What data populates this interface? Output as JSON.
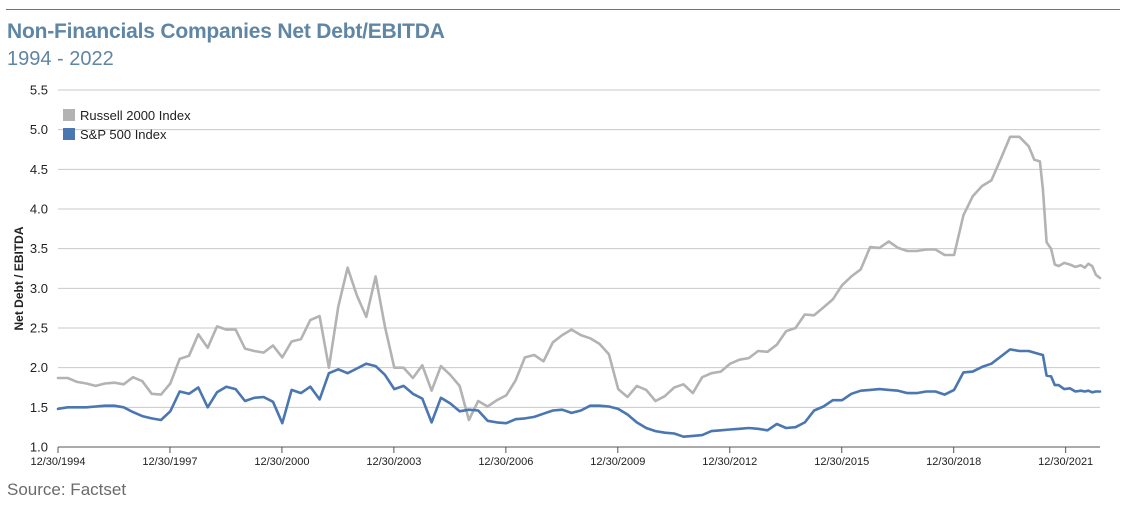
{
  "header": {
    "title": "Non-Financials Companies Net Debt/EBITDA",
    "subtitle": "1994 - 2022"
  },
  "footer": {
    "source": "Source: Factset"
  },
  "chart_data": {
    "type": "line",
    "ylabel": "Net Debt / EBITDA",
    "ylim": [
      1.0,
      5.5
    ],
    "yticks": [
      "1.0",
      "1.5",
      "2.0",
      "2.5",
      "3.0",
      "3.5",
      "4.0",
      "4.5",
      "5.0",
      "5.5"
    ],
    "xlim": [
      1994.99,
      2022.91
    ],
    "xticks": [
      {
        "label": "12/30/1994",
        "value": 1994.99
      },
      {
        "label": "12/30/1997",
        "value": 1997.99
      },
      {
        "label": "12/30/2000",
        "value": 2000.99
      },
      {
        "label": "12/30/2003",
        "value": 2003.99
      },
      {
        "label": "12/30/2006",
        "value": 2006.99
      },
      {
        "label": "12/30/2009",
        "value": 2009.99
      },
      {
        "label": "12/30/2012",
        "value": 2012.99
      },
      {
        "label": "12/30/2015",
        "value": 2015.99
      },
      {
        "label": "12/30/2018",
        "value": 2018.99
      },
      {
        "label": "12/30/2021",
        "value": 2021.99
      }
    ],
    "grid": true,
    "legend_position": "top-left",
    "series": [
      {
        "name": "Russell 2000 Index",
        "color": "#b3b3b3",
        "points": [
          [
            1994.99,
            1.87
          ],
          [
            1995.25,
            1.87
          ],
          [
            1995.5,
            1.82
          ],
          [
            1995.75,
            1.8
          ],
          [
            1996.0,
            1.77
          ],
          [
            1996.25,
            1.8
          ],
          [
            1996.5,
            1.81
          ],
          [
            1996.75,
            1.79
          ],
          [
            1997.0,
            1.88
          ],
          [
            1997.25,
            1.83
          ],
          [
            1997.5,
            1.67
          ],
          [
            1997.75,
            1.66
          ],
          [
            1998.0,
            1.8
          ],
          [
            1998.25,
            2.11
          ],
          [
            1998.5,
            2.15
          ],
          [
            1998.75,
            2.42
          ],
          [
            1999.0,
            2.25
          ],
          [
            1999.25,
            2.52
          ],
          [
            1999.5,
            2.48
          ],
          [
            1999.75,
            2.48
          ],
          [
            2000.0,
            2.24
          ],
          [
            2000.25,
            2.21
          ],
          [
            2000.5,
            2.19
          ],
          [
            2000.75,
            2.28
          ],
          [
            2001.0,
            2.13
          ],
          [
            2001.25,
            2.33
          ],
          [
            2001.5,
            2.36
          ],
          [
            2001.75,
            2.6
          ],
          [
            2002.0,
            2.65
          ],
          [
            2002.25,
            2.0
          ],
          [
            2002.5,
            2.77
          ],
          [
            2002.75,
            3.26
          ],
          [
            2003.0,
            2.91
          ],
          [
            2003.25,
            2.64
          ],
          [
            2003.5,
            3.15
          ],
          [
            2003.75,
            2.52
          ],
          [
            2004.0,
            2.0
          ],
          [
            2004.25,
            2.0
          ],
          [
            2004.5,
            1.87
          ],
          [
            2004.75,
            2.03
          ],
          [
            2005.0,
            1.71
          ],
          [
            2005.25,
            2.02
          ],
          [
            2005.5,
            1.91
          ],
          [
            2005.75,
            1.77
          ],
          [
            2006.0,
            1.34
          ],
          [
            2006.25,
            1.58
          ],
          [
            2006.5,
            1.51
          ],
          [
            2006.75,
            1.59
          ],
          [
            2007.0,
            1.65
          ],
          [
            2007.25,
            1.84
          ],
          [
            2007.5,
            2.13
          ],
          [
            2007.75,
            2.16
          ],
          [
            2008.0,
            2.08
          ],
          [
            2008.25,
            2.32
          ],
          [
            2008.5,
            2.41
          ],
          [
            2008.75,
            2.48
          ],
          [
            2009.0,
            2.41
          ],
          [
            2009.25,
            2.37
          ],
          [
            2009.5,
            2.3
          ],
          [
            2009.75,
            2.17
          ],
          [
            2010.0,
            1.73
          ],
          [
            2010.25,
            1.63
          ],
          [
            2010.5,
            1.77
          ],
          [
            2010.75,
            1.72
          ],
          [
            2011.0,
            1.58
          ],
          [
            2011.25,
            1.64
          ],
          [
            2011.5,
            1.75
          ],
          [
            2011.75,
            1.79
          ],
          [
            2012.0,
            1.68
          ],
          [
            2012.25,
            1.88
          ],
          [
            2012.5,
            1.93
          ],
          [
            2012.75,
            1.95
          ],
          [
            2013.0,
            2.05
          ],
          [
            2013.25,
            2.1
          ],
          [
            2013.5,
            2.12
          ],
          [
            2013.75,
            2.21
          ],
          [
            2014.0,
            2.2
          ],
          [
            2014.25,
            2.29
          ],
          [
            2014.5,
            2.46
          ],
          [
            2014.75,
            2.5
          ],
          [
            2015.0,
            2.67
          ],
          [
            2015.25,
            2.66
          ],
          [
            2015.5,
            2.76
          ],
          [
            2015.75,
            2.86
          ],
          [
            2016.0,
            3.04
          ],
          [
            2016.25,
            3.15
          ],
          [
            2016.5,
            3.24
          ],
          [
            2016.75,
            3.52
          ],
          [
            2017.0,
            3.51
          ],
          [
            2017.25,
            3.59
          ],
          [
            2017.5,
            3.51
          ],
          [
            2017.75,
            3.47
          ],
          [
            2018.0,
            3.47
          ],
          [
            2018.25,
            3.49
          ],
          [
            2018.5,
            3.49
          ],
          [
            2018.75,
            3.42
          ],
          [
            2019.0,
            3.42
          ],
          [
            2019.25,
            3.92
          ],
          [
            2019.5,
            4.16
          ],
          [
            2019.75,
            4.29
          ],
          [
            2020.0,
            4.36
          ],
          [
            2020.25,
            4.63
          ],
          [
            2020.5,
            4.91
          ],
          [
            2020.75,
            4.91
          ],
          [
            2021.0,
            4.79
          ],
          [
            2021.15,
            4.62
          ],
          [
            2021.3,
            4.6
          ],
          [
            2021.38,
            4.25
          ],
          [
            2021.48,
            3.58
          ],
          [
            2021.6,
            3.5
          ],
          [
            2021.7,
            3.3
          ],
          [
            2021.8,
            3.28
          ],
          [
            2021.95,
            3.32
          ],
          [
            2022.1,
            3.3
          ],
          [
            2022.25,
            3.27
          ],
          [
            2022.4,
            3.29
          ],
          [
            2022.5,
            3.26
          ],
          [
            2022.6,
            3.31
          ],
          [
            2022.7,
            3.28
          ],
          [
            2022.8,
            3.17
          ],
          [
            2022.91,
            3.13
          ]
        ]
      },
      {
        "name": "S&P 500 Index",
        "color": "#4a76b1",
        "points": [
          [
            1994.99,
            1.48
          ],
          [
            1995.25,
            1.5
          ],
          [
            1995.5,
            1.5
          ],
          [
            1995.75,
            1.5
          ],
          [
            1996.0,
            1.51
          ],
          [
            1996.25,
            1.52
          ],
          [
            1996.5,
            1.52
          ],
          [
            1996.75,
            1.5
          ],
          [
            1997.0,
            1.44
          ],
          [
            1997.25,
            1.39
          ],
          [
            1997.5,
            1.36
          ],
          [
            1997.75,
            1.34
          ],
          [
            1998.0,
            1.45
          ],
          [
            1998.25,
            1.7
          ],
          [
            1998.5,
            1.67
          ],
          [
            1998.75,
            1.75
          ],
          [
            1999.0,
            1.5
          ],
          [
            1999.25,
            1.69
          ],
          [
            1999.5,
            1.76
          ],
          [
            1999.75,
            1.73
          ],
          [
            2000.0,
            1.58
          ],
          [
            2000.25,
            1.62
          ],
          [
            2000.5,
            1.63
          ],
          [
            2000.75,
            1.57
          ],
          [
            2001.0,
            1.3
          ],
          [
            2001.25,
            1.72
          ],
          [
            2001.5,
            1.68
          ],
          [
            2001.75,
            1.76
          ],
          [
            2002.0,
            1.6
          ],
          [
            2002.25,
            1.93
          ],
          [
            2002.5,
            1.98
          ],
          [
            2002.75,
            1.93
          ],
          [
            2003.0,
            1.99
          ],
          [
            2003.25,
            2.05
          ],
          [
            2003.5,
            2.02
          ],
          [
            2003.75,
            1.91
          ],
          [
            2004.0,
            1.73
          ],
          [
            2004.25,
            1.77
          ],
          [
            2004.5,
            1.67
          ],
          [
            2004.75,
            1.61
          ],
          [
            2005.0,
            1.31
          ],
          [
            2005.25,
            1.62
          ],
          [
            2005.5,
            1.55
          ],
          [
            2005.75,
            1.45
          ],
          [
            2006.0,
            1.47
          ],
          [
            2006.25,
            1.46
          ],
          [
            2006.5,
            1.33
          ],
          [
            2006.75,
            1.31
          ],
          [
            2007.0,
            1.3
          ],
          [
            2007.25,
            1.35
          ],
          [
            2007.5,
            1.36
          ],
          [
            2007.75,
            1.38
          ],
          [
            2008.0,
            1.42
          ],
          [
            2008.25,
            1.46
          ],
          [
            2008.5,
            1.47
          ],
          [
            2008.75,
            1.43
          ],
          [
            2009.0,
            1.46
          ],
          [
            2009.25,
            1.52
          ],
          [
            2009.5,
            1.52
          ],
          [
            2009.75,
            1.51
          ],
          [
            2010.0,
            1.48
          ],
          [
            2010.25,
            1.41
          ],
          [
            2010.5,
            1.31
          ],
          [
            2010.75,
            1.24
          ],
          [
            2011.0,
            1.2
          ],
          [
            2011.25,
            1.18
          ],
          [
            2011.5,
            1.17
          ],
          [
            2011.75,
            1.13
          ],
          [
            2012.0,
            1.14
          ],
          [
            2012.25,
            1.15
          ],
          [
            2012.5,
            1.2
          ],
          [
            2012.75,
            1.21
          ],
          [
            2013.0,
            1.22
          ],
          [
            2013.25,
            1.23
          ],
          [
            2013.5,
            1.24
          ],
          [
            2013.75,
            1.23
          ],
          [
            2014.0,
            1.21
          ],
          [
            2014.25,
            1.29
          ],
          [
            2014.5,
            1.24
          ],
          [
            2014.75,
            1.25
          ],
          [
            2015.0,
            1.31
          ],
          [
            2015.25,
            1.46
          ],
          [
            2015.5,
            1.51
          ],
          [
            2015.75,
            1.59
          ],
          [
            2016.0,
            1.59
          ],
          [
            2016.25,
            1.67
          ],
          [
            2016.5,
            1.71
          ],
          [
            2016.75,
            1.72
          ],
          [
            2017.0,
            1.73
          ],
          [
            2017.25,
            1.72
          ],
          [
            2017.5,
            1.71
          ],
          [
            2017.75,
            1.68
          ],
          [
            2018.0,
            1.68
          ],
          [
            2018.25,
            1.7
          ],
          [
            2018.5,
            1.7
          ],
          [
            2018.75,
            1.66
          ],
          [
            2019.0,
            1.72
          ],
          [
            2019.25,
            1.94
          ],
          [
            2019.5,
            1.95
          ],
          [
            2019.75,
            2.01
          ],
          [
            2020.0,
            2.05
          ],
          [
            2020.25,
            2.14
          ],
          [
            2020.5,
            2.23
          ],
          [
            2020.75,
            2.21
          ],
          [
            2021.0,
            2.21
          ],
          [
            2021.15,
            2.19
          ],
          [
            2021.3,
            2.17
          ],
          [
            2021.38,
            2.16
          ],
          [
            2021.48,
            1.9
          ],
          [
            2021.6,
            1.89
          ],
          [
            2021.7,
            1.78
          ],
          [
            2021.8,
            1.78
          ],
          [
            2021.95,
            1.73
          ],
          [
            2022.1,
            1.74
          ],
          [
            2022.25,
            1.7
          ],
          [
            2022.4,
            1.71
          ],
          [
            2022.5,
            1.7
          ],
          [
            2022.6,
            1.71
          ],
          [
            2022.7,
            1.69
          ],
          [
            2022.8,
            1.7
          ],
          [
            2022.91,
            1.7
          ]
        ]
      }
    ]
  }
}
